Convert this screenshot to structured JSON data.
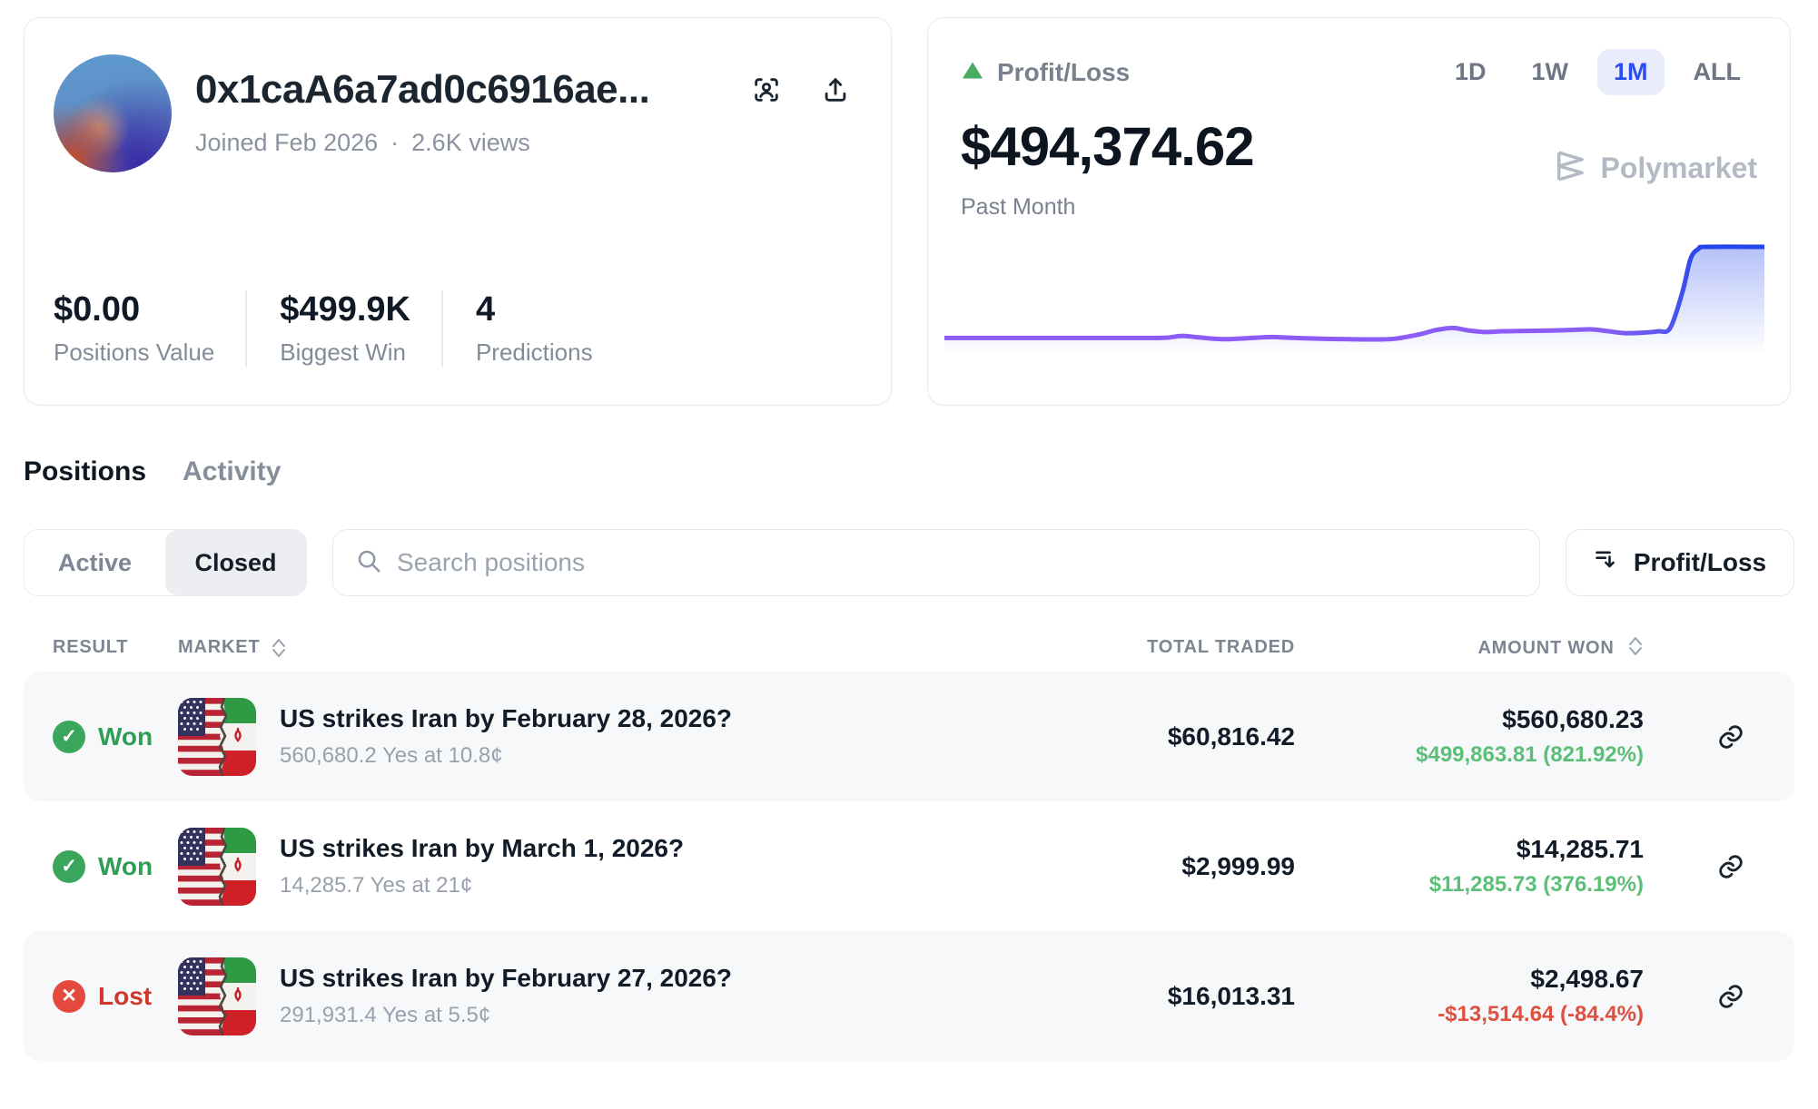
{
  "profile": {
    "name": "0x1caA6a7ad0c6916ae...",
    "joined": "Joined Feb 2026",
    "separator": "·",
    "views": "2.6K views",
    "stats": [
      {
        "value": "$0.00",
        "label": "Positions Value"
      },
      {
        "value": "$499.9K",
        "label": "Biggest Win"
      },
      {
        "value": "4",
        "label": "Predictions"
      }
    ]
  },
  "pnl_card": {
    "label": "Profit/Loss",
    "value": "$494,374.62",
    "period_label": "Past Month",
    "ranges": [
      "1D",
      "1W",
      "1M",
      "ALL"
    ],
    "active_range": "1M",
    "watermark": "Polymarket",
    "colors": {
      "active_range_text": "#2b4cf0",
      "active_range_bg": "#e8ecfb",
      "trend_up_triangle": "#4aab63",
      "line_start": "#8b5cf6",
      "line_end": "#2547e9"
    }
  },
  "chart_data": {
    "type": "area",
    "title": "Profit/Loss",
    "subtitle": "Past Month",
    "unit": "USD",
    "final_value": 494374.62,
    "ylim": [
      -6000,
      494374.62
    ],
    "grid": false,
    "legend": false,
    "points": [
      [
        0,
        2000
      ],
      [
        8,
        2000
      ],
      [
        16,
        2000
      ],
      [
        24,
        2000
      ],
      [
        27,
        3000
      ],
      [
        29,
        13000
      ],
      [
        31,
        5000
      ],
      [
        34,
        -5000
      ],
      [
        37,
        1000
      ],
      [
        40,
        7000
      ],
      [
        42,
        3000
      ],
      [
        45,
        -1000
      ],
      [
        48,
        -4000
      ],
      [
        52,
        -6000
      ],
      [
        55,
        -2000
      ],
      [
        58,
        22000
      ],
      [
        60,
        45000
      ],
      [
        62,
        56000
      ],
      [
        64,
        42000
      ],
      [
        66,
        34000
      ],
      [
        68,
        38000
      ],
      [
        71,
        40000
      ],
      [
        74,
        42000
      ],
      [
        77,
        46000
      ],
      [
        79,
        48000
      ],
      [
        81,
        38000
      ],
      [
        83,
        28000
      ],
      [
        85,
        30000
      ],
      [
        87,
        38000
      ],
      [
        88.5,
        55000
      ],
      [
        90,
        250000
      ],
      [
        91,
        430000
      ],
      [
        92,
        485000
      ],
      [
        93,
        494374.62
      ],
      [
        100,
        494374.62
      ]
    ]
  },
  "tabs": {
    "positions": "Positions",
    "activity": "Activity"
  },
  "filters": {
    "active_label": "Active",
    "closed_label": "Closed",
    "selected": "Closed",
    "search_placeholder": "Search positions",
    "sort_label": "Profit/Loss"
  },
  "table": {
    "headers": {
      "result": "RESULT",
      "market": "MARKET",
      "total_traded": "TOTAL TRADED",
      "amount_won": "AMOUNT WON"
    },
    "rows": [
      {
        "result": "Won",
        "icon": "✓",
        "title": "US strikes Iran by February 28, 2026?",
        "subtitle": "560,680.2 Yes at 10.8¢",
        "total_traded": "$60,816.42",
        "amount_won": "$560,680.23",
        "pnl": "$499,863.81 (821.92%)",
        "pnl_positive": true
      },
      {
        "result": "Won",
        "icon": "✓",
        "title": "US strikes Iran by March 1, 2026?",
        "subtitle": "14,285.7 Yes at 21¢",
        "total_traded": "$2,999.99",
        "amount_won": "$14,285.71",
        "pnl": "$11,285.73 (376.19%)",
        "pnl_positive": true
      },
      {
        "result": "Lost",
        "icon": "✕",
        "title": "US strikes Iran by February 27, 2026?",
        "subtitle": "291,931.4 Yes at 5.5¢",
        "total_traded": "$16,013.31",
        "amount_won": "$2,498.67",
        "pnl": "-$13,514.64 (-84.4%)",
        "pnl_positive": false
      }
    ]
  }
}
